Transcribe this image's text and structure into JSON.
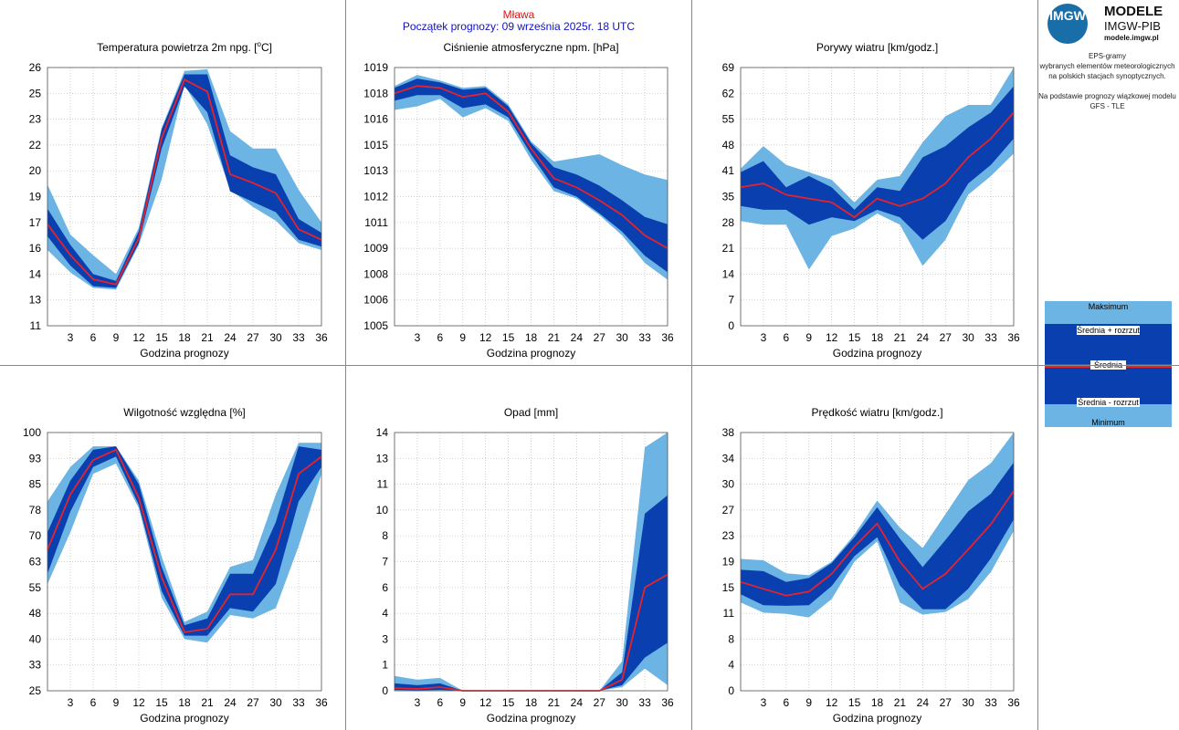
{
  "header": {
    "station": "Mława",
    "forecast_start": "Początek prognozy: 09 września 2025r. 18 UTC"
  },
  "logo": {
    "mark": "IMGW",
    "title": "MODELE",
    "subtitle": "IMGW-PIB",
    "url": "modele.imgw.pl"
  },
  "side_text": {
    "line1": "EPS-gramy",
    "line2": "wybranych elementów meteorologicznych",
    "line3": "na polskich stacjach  synoptycznych.",
    "line4": "Na podstawie prognozy wiązkowej modelu",
    "line5": "GFS - TLE"
  },
  "legend": {
    "max": "Maksimum",
    "upper": "Średnia + rozrzut",
    "mean": "Średnia",
    "lower": "Średnia - rozrzut",
    "min": "Minimum"
  },
  "colors": {
    "envelope": "#6cb4e4",
    "spread": "#0a3fb0",
    "mean": "#e8222a",
    "grid": "#bdbdbd"
  },
  "chart_data": [
    {
      "type": "area",
      "title_main": "Temperatura powietrza 2m npg. [",
      "title_sup": "o",
      "title_end": "C]",
      "xlabel": "Godzina prognozy",
      "x": [
        0,
        3,
        6,
        9,
        12,
        15,
        18,
        21,
        24,
        27,
        30,
        33,
        36
      ],
      "xticks": [
        "3",
        "6",
        "9",
        "12",
        "15",
        "18",
        "21",
        "24",
        "27",
        "30",
        "33",
        "36"
      ],
      "ylim": [
        11,
        26
      ],
      "yticks": [
        "11",
        "13",
        "14",
        "16",
        "17",
        "19",
        "20",
        "22",
        "23",
        "25",
        "26"
      ],
      "max": [
        19.2,
        16.3,
        15.1,
        14.0,
        16.7,
        22.5,
        25.8,
        25.9,
        22.3,
        21.3,
        21.3,
        18.9,
        17.0
      ],
      "upper": [
        17.8,
        15.7,
        14.0,
        13.6,
        16.5,
        22.4,
        25.6,
        25.6,
        20.9,
        20.2,
        19.8,
        17.2,
        16.4
      ],
      "mean": [
        16.9,
        15.1,
        13.7,
        13.4,
        16.1,
        21.9,
        25.3,
        24.6,
        19.8,
        19.3,
        18.7,
        16.6,
        16.0
      ],
      "lower": [
        16.2,
        14.5,
        13.3,
        13.2,
        15.8,
        21.3,
        24.9,
        23.4,
        18.8,
        18.2,
        17.6,
        16.0,
        15.6
      ],
      "min": [
        15.4,
        14.1,
        13.2,
        13.1,
        15.7,
        19.5,
        25.0,
        22.7,
        18.9,
        17.9,
        17.1,
        15.8,
        15.4
      ]
    },
    {
      "type": "area",
      "title": "Ciśnienie atmosferyczne npm. [hPa]",
      "xlabel": "",
      "x": [
        0,
        3,
        6,
        9,
        12,
        15,
        18,
        21,
        24,
        27,
        30,
        33,
        36
      ],
      "xticks": [
        "3",
        "6",
        "9",
        "12",
        "15",
        "18",
        "21",
        "24",
        "27",
        "30",
        "33",
        "36"
      ],
      "ylim": [
        1005,
        1019
      ],
      "yticks": [
        "1005",
        "1006",
        "1008",
        "1009",
        "1011",
        "1012",
        "1013",
        "1015",
        "1016",
        "1018",
        "1019"
      ],
      "max": [
        1018.0,
        1018.6,
        1018.3,
        1017.9,
        1018.0,
        1017.0,
        1015.0,
        1013.9,
        1014.1,
        1014.3,
        1013.7,
        1013.2,
        1012.9
      ],
      "upper": [
        1017.9,
        1018.4,
        1018.2,
        1017.8,
        1017.9,
        1016.9,
        1014.9,
        1013.6,
        1013.2,
        1012.6,
        1011.8,
        1010.9,
        1010.5
      ],
      "mean": [
        1017.6,
        1018.0,
        1017.9,
        1017.4,
        1017.6,
        1016.6,
        1014.6,
        1013.0,
        1012.5,
        1011.8,
        1011.0,
        1009.9,
        1009.2
      ],
      "lower": [
        1017.2,
        1017.5,
        1017.5,
        1016.8,
        1017.0,
        1016.3,
        1014.3,
        1012.5,
        1012.0,
        1011.1,
        1010.1,
        1008.8,
        1007.9
      ],
      "min": [
        1016.7,
        1016.9,
        1017.3,
        1016.3,
        1016.8,
        1016.1,
        1014.0,
        1012.3,
        1011.9,
        1011.0,
        1009.9,
        1008.4,
        1007.5
      ]
    },
    {
      "type": "area",
      "title": "Porywy wiatru [km/godz.]",
      "xlabel": "",
      "x": [
        0,
        3,
        6,
        9,
        12,
        15,
        18,
        21,
        24,
        27,
        30,
        33,
        36
      ],
      "xticks": [
        "3",
        "6",
        "9",
        "12",
        "15",
        "18",
        "21",
        "24",
        "27",
        "30",
        "33",
        "36"
      ],
      "ylim": [
        0,
        69
      ],
      "yticks": [
        "0",
        "7",
        "14",
        "21",
        "28",
        "35",
        "41",
        "48",
        "55",
        "62",
        "69"
      ],
      "max": [
        42,
        48,
        43,
        41,
        39,
        33,
        39,
        40,
        49,
        56,
        59,
        59,
        69
      ],
      "upper": [
        41,
        44,
        37,
        40,
        37,
        31,
        37,
        36,
        45,
        48,
        53,
        57,
        64
      ],
      "mean": [
        37,
        38,
        35,
        34,
        33,
        29,
        34,
        32,
        34,
        38,
        45,
        50,
        57
      ],
      "lower": [
        32,
        31,
        31,
        27,
        29,
        28,
        31,
        29,
        23,
        28,
        38,
        43,
        50
      ],
      "min": [
        28,
        27,
        27,
        15,
        24,
        26,
        30,
        27,
        16,
        23,
        35,
        40,
        46
      ]
    },
    {
      "type": "area",
      "title": "Wilgotność względna [%]",
      "xlabel": "",
      "x": [
        0,
        3,
        6,
        9,
        12,
        15,
        18,
        21,
        24,
        27,
        30,
        33,
        36
      ],
      "xticks": [
        "3",
        "6",
        "9",
        "12",
        "15",
        "18",
        "21",
        "24",
        "27",
        "30",
        "33",
        "36"
      ],
      "ylim": [
        25,
        100
      ],
      "yticks": [
        "25",
        "33",
        "40",
        "48",
        "55",
        "63",
        "70",
        "78",
        "85",
        "93",
        "100"
      ],
      "max": [
        80,
        90,
        96,
        96,
        86,
        64,
        45,
        48,
        61,
        63,
        82,
        97,
        97
      ],
      "upper": [
        71,
        86,
        95,
        96,
        85,
        61,
        44,
        46,
        59,
        59,
        74,
        96,
        95
      ],
      "mean": [
        66,
        82,
        92,
        95,
        81,
        58,
        42,
        43,
        53,
        53,
        66,
        88,
        93
      ],
      "lower": [
        59,
        77,
        90,
        93,
        79,
        54,
        41,
        41,
        49,
        48,
        56,
        80,
        90
      ],
      "min": [
        56,
        71,
        88,
        91,
        78,
        52,
        40,
        39,
        47,
        46,
        49,
        67,
        88
      ]
    },
    {
      "type": "area",
      "title": "Opad [mm]",
      "xlabel": "",
      "x": [
        0,
        3,
        6,
        9,
        12,
        15,
        18,
        21,
        24,
        27,
        30,
        33,
        36
      ],
      "xticks": [
        "3",
        "6",
        "9",
        "12",
        "15",
        "18",
        "21",
        "24",
        "27",
        "30",
        "33",
        "36"
      ],
      "ylim": [
        0,
        14
      ],
      "yticks": [
        "0",
        "1",
        "3",
        "4",
        "6",
        "7",
        "8",
        "10",
        "11",
        "13",
        "14"
      ],
      "max": [
        0.8,
        0.6,
        0.7,
        0,
        0,
        0,
        0,
        0,
        0,
        0,
        1.6,
        13.2,
        14.0
      ],
      "upper": [
        0.4,
        0.3,
        0.4,
        0,
        0,
        0,
        0,
        0,
        0,
        0,
        1.0,
        9.6,
        10.6
      ],
      "mean": [
        0.15,
        0.1,
        0.2,
        0,
        0,
        0,
        0,
        0,
        0,
        0,
        0.6,
        5.6,
        6.3
      ],
      "lower": [
        0.05,
        0.02,
        0.05,
        0,
        0,
        0,
        0,
        0,
        0,
        0,
        0.3,
        1.8,
        2.6
      ],
      "min": [
        0,
        0,
        0,
        0,
        0,
        0,
        0,
        0,
        0,
        0,
        0.2,
        1.2,
        0.3
      ]
    },
    {
      "type": "area",
      "title": "Prędkość wiatru [km/godz.]",
      "xlabel": "",
      "x": [
        0,
        3,
        6,
        9,
        12,
        15,
        18,
        21,
        24,
        27,
        30,
        33,
        36
      ],
      "xticks": [
        "3",
        "6",
        "9",
        "12",
        "15",
        "18",
        "21",
        "24",
        "27",
        "30",
        "33",
        "36"
      ],
      "ylim": [
        0,
        38
      ],
      "yticks": [
        "0",
        "4",
        "8",
        "11",
        "15",
        "19",
        "23",
        "27",
        "30",
        "34",
        "38"
      ],
      "max": [
        19.4,
        19.2,
        17.3,
        17.0,
        19.0,
        23.0,
        28.0,
        24.0,
        21.0,
        26.0,
        31.0,
        33.5,
        38.0
      ],
      "upper": [
        17.8,
        17.6,
        16.0,
        16.6,
        18.8,
        22.6,
        27.0,
        22.4,
        18.2,
        22.2,
        26.4,
        29.0,
        33.6
      ],
      "mean": [
        16.0,
        15.0,
        14.0,
        14.6,
        17.2,
        21.2,
        24.6,
        19.0,
        15.0,
        17.2,
        20.8,
        24.5,
        29.4
      ],
      "lower": [
        14.2,
        12.6,
        12.5,
        12.6,
        15.4,
        19.8,
        22.6,
        15.5,
        12.0,
        12.0,
        15.0,
        19.5,
        25.2
      ],
      "min": [
        13.0,
        11.5,
        11.3,
        10.8,
        13.5,
        19.0,
        22.0,
        13.0,
        11.2,
        11.6,
        13.5,
        17.5,
        23.5
      ]
    }
  ]
}
